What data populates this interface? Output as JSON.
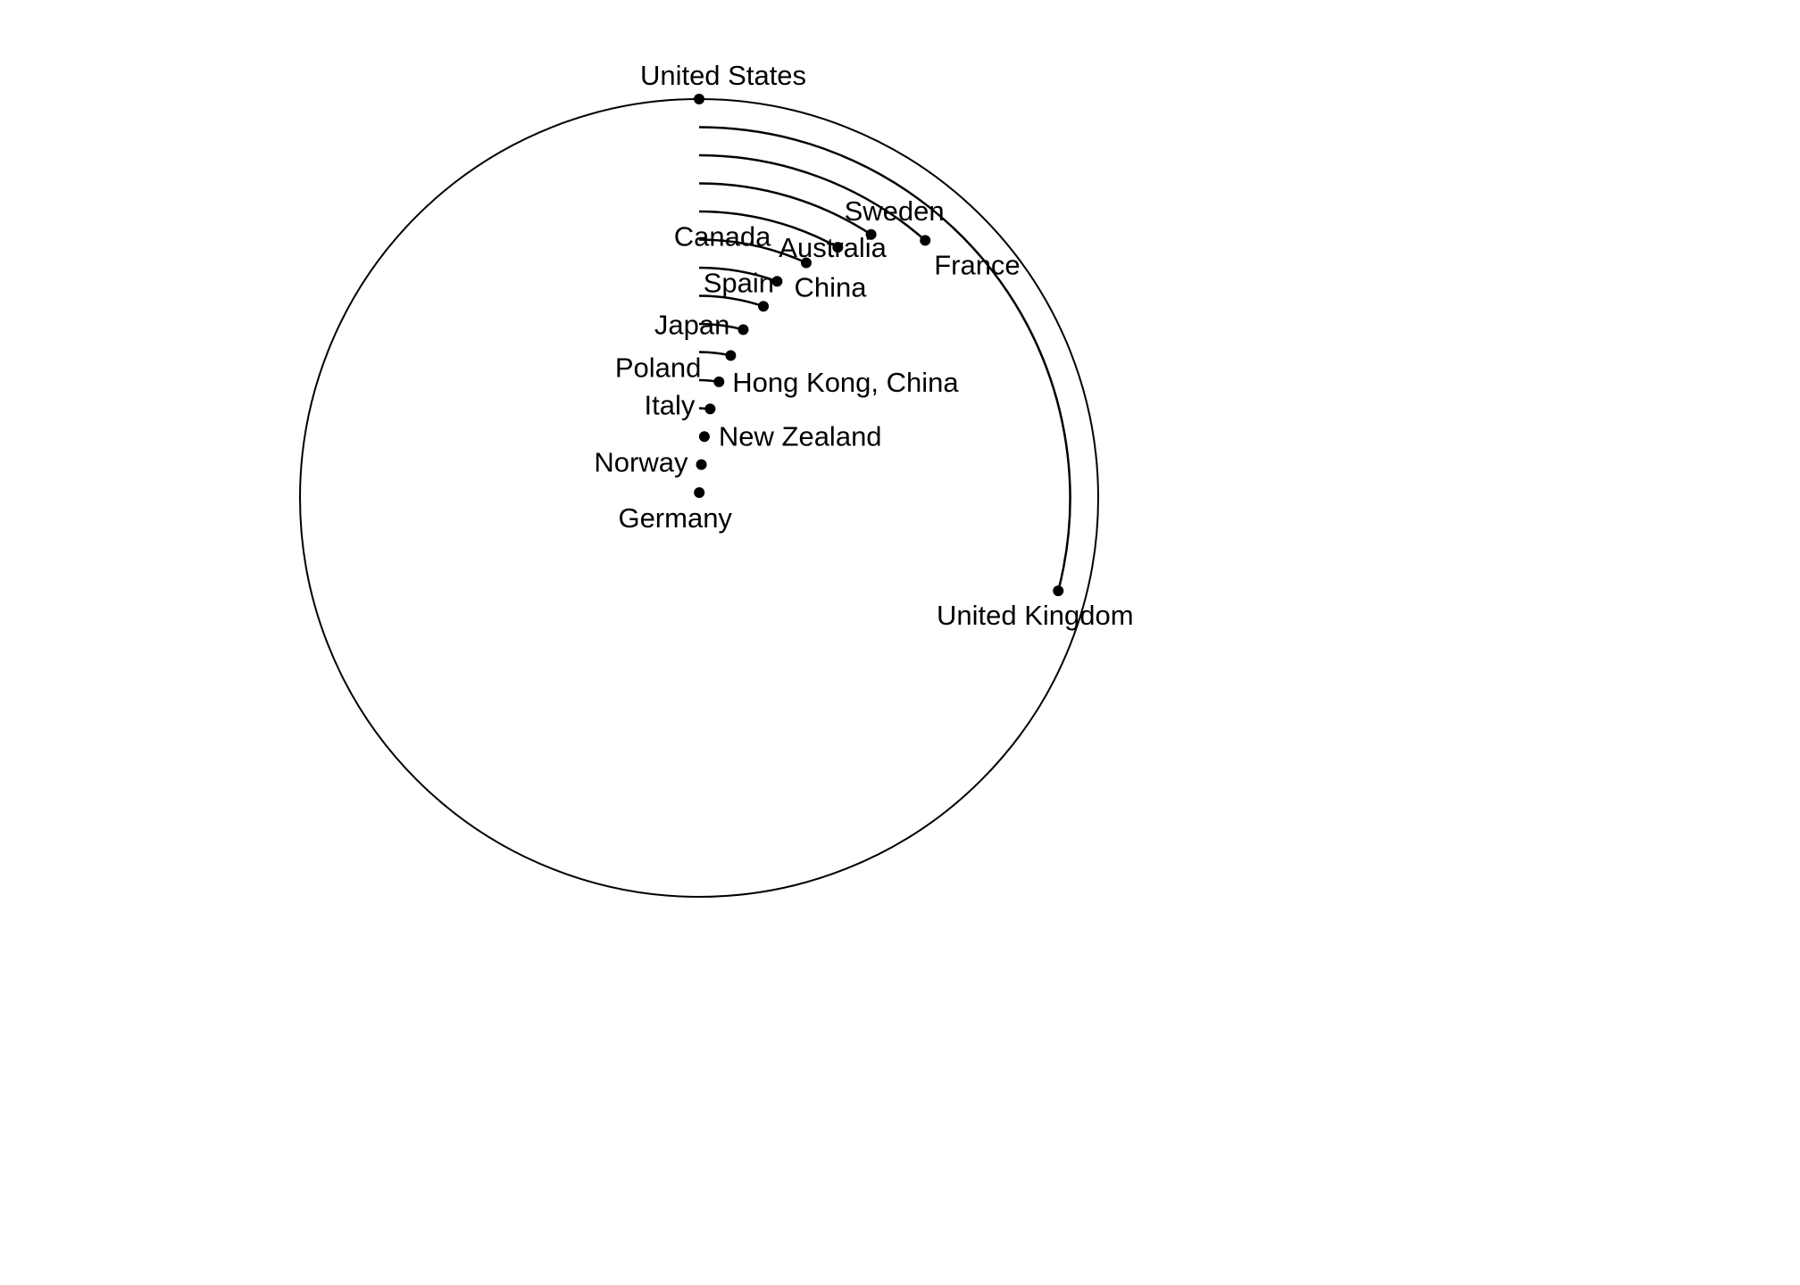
{
  "chart_data": {
    "type": "radial-bar",
    "title": "",
    "value_unit": "fraction of full turn",
    "range": [
      0,
      1
    ],
    "series": [
      {
        "name": "",
        "values": [
          1.0,
          0.2903,
          0.1146,
          0.092,
          0.0804,
          0.068,
          0.055,
          0.0515,
          0.0408,
          0.0347,
          0.027,
          0.0197,
          0.0136,
          0.0108,
          0.0048
        ]
      }
    ],
    "categories": [
      "United States",
      "United Kingdom",
      "France",
      "Sweden",
      "Australia",
      "China",
      "Canada",
      "Spain",
      "Japan",
      "Poland",
      "Hong Kong, China",
      "Italy",
      "New Zealand",
      "Norway",
      "Germany"
    ]
  }
}
